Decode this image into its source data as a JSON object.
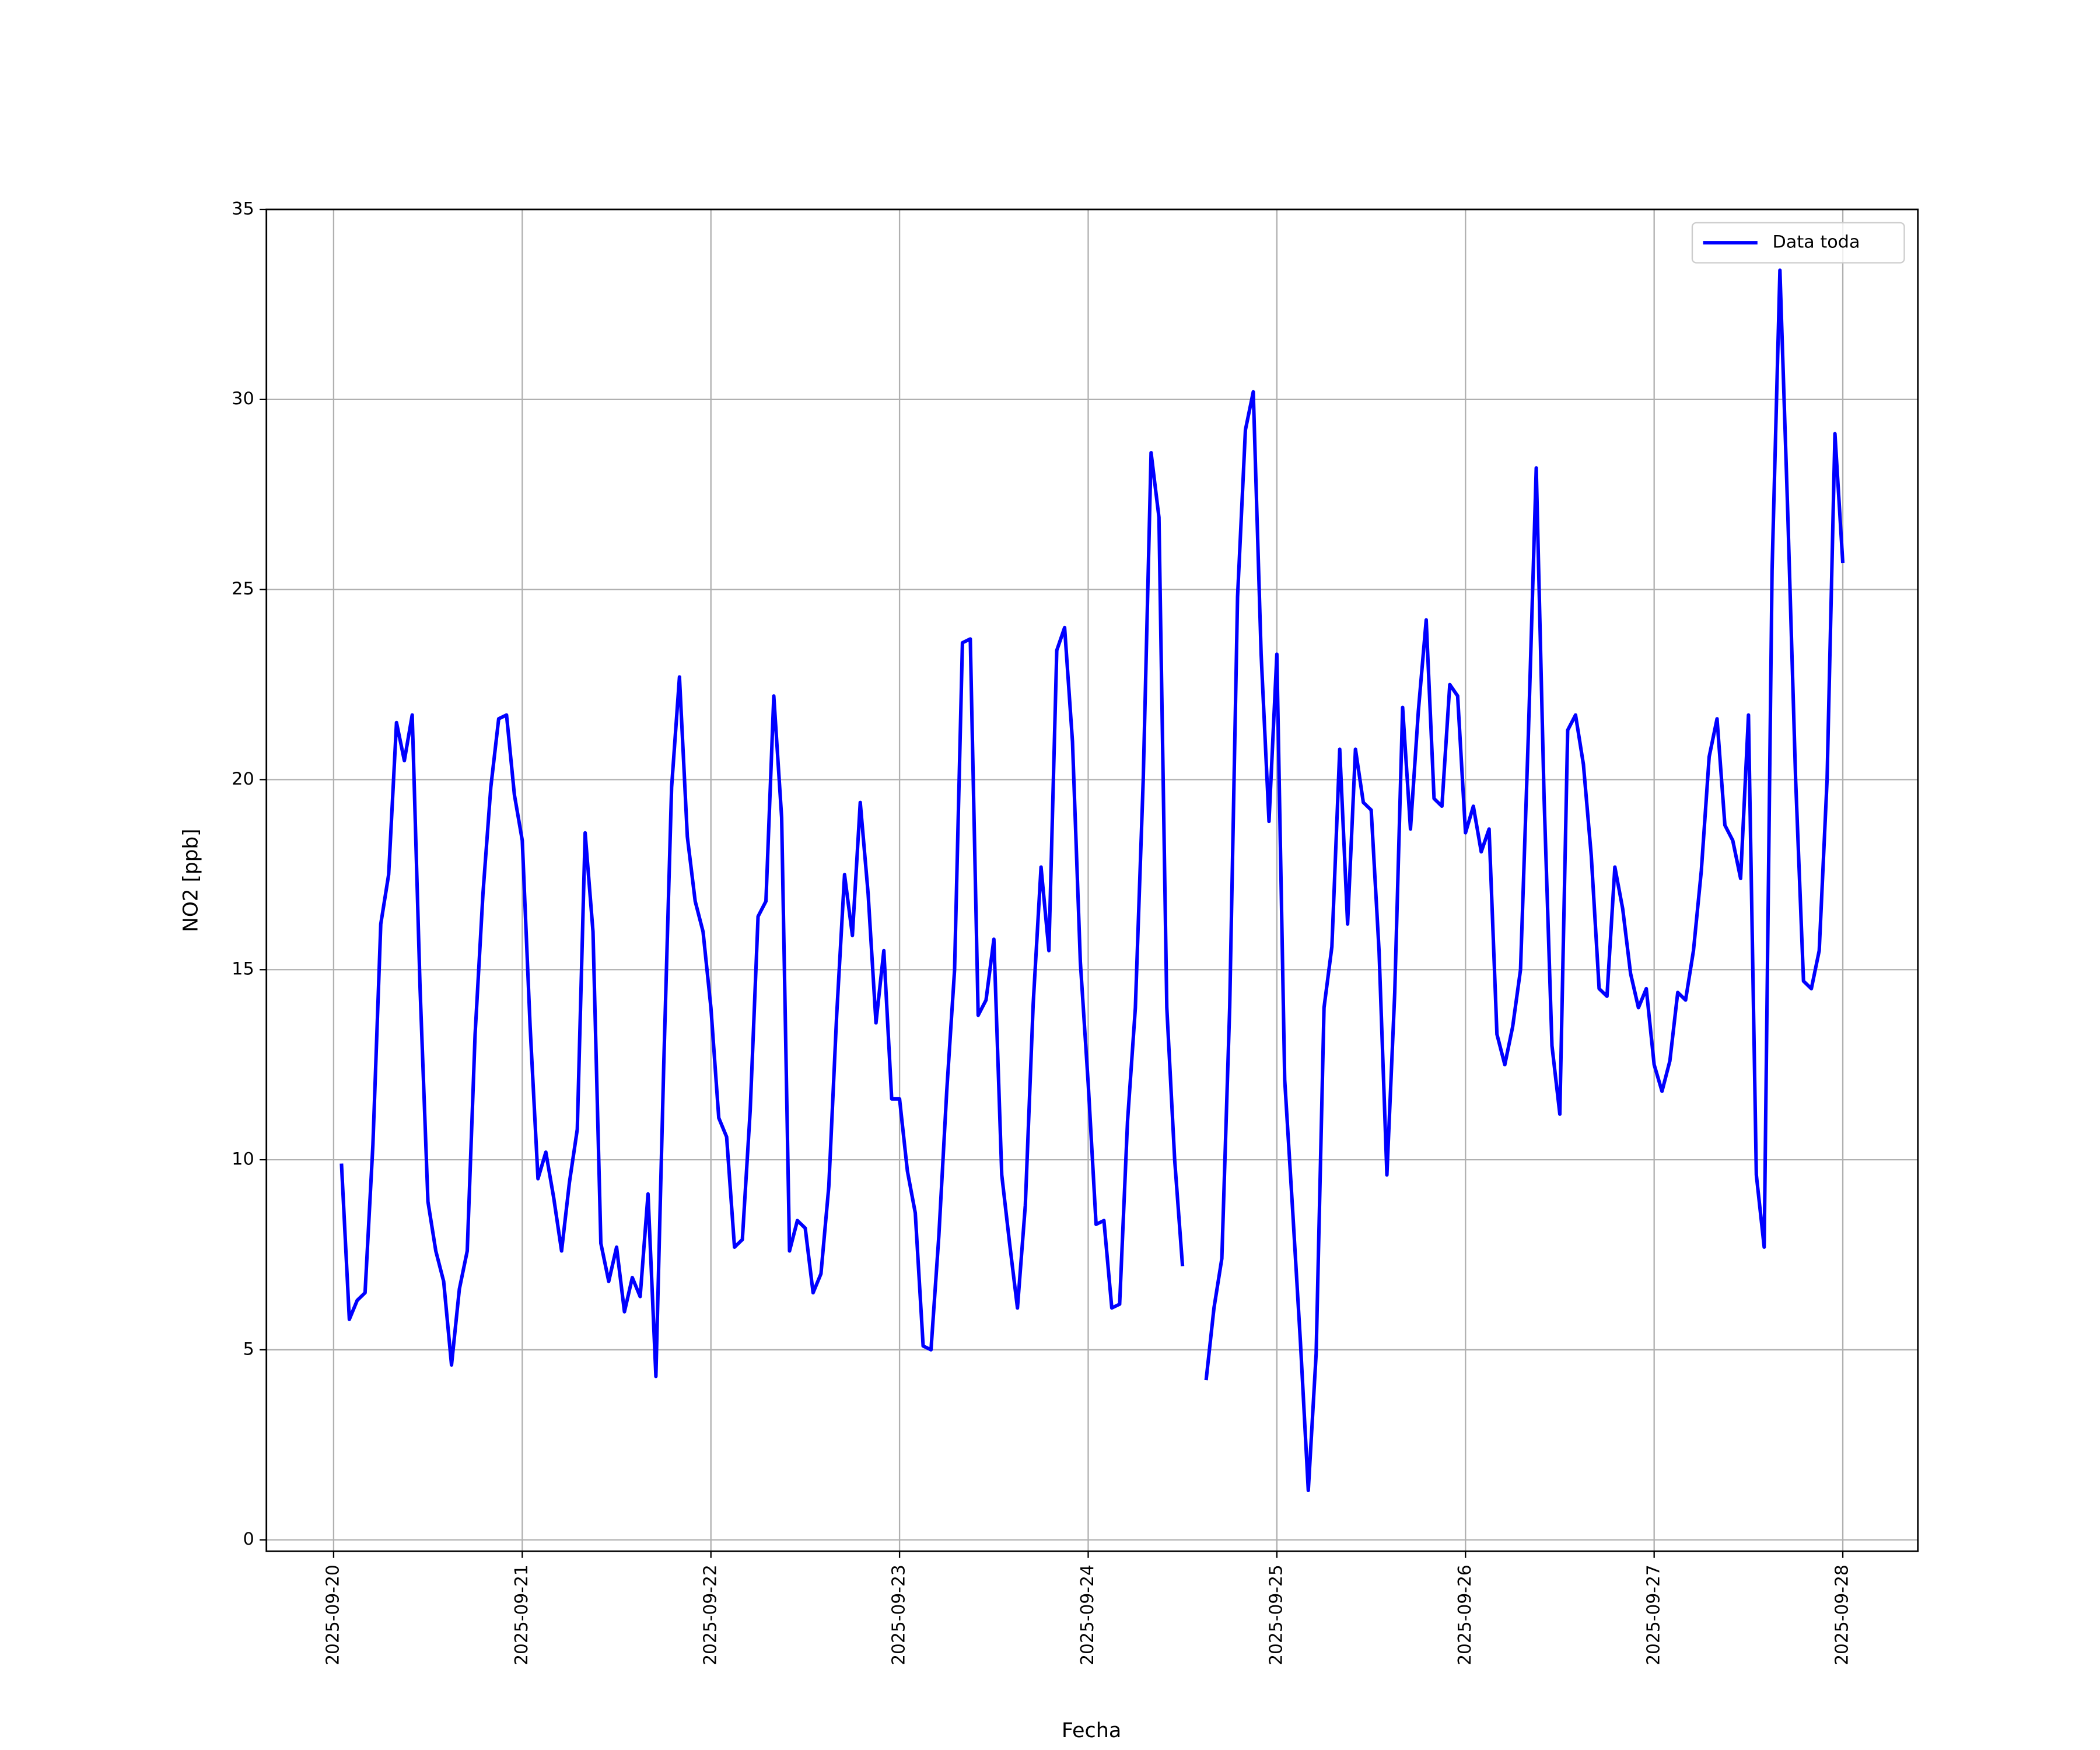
{
  "chart_data": {
    "type": "line",
    "x_label": "Fecha",
    "y_label": "NO2 [ppb]",
    "x": [
      1,
      2,
      3,
      4,
      5,
      6,
      7,
      8,
      9,
      10,
      11,
      12,
      13,
      14,
      15,
      16,
      17,
      18,
      19,
      20,
      21,
      22,
      23,
      24,
      25,
      26,
      27,
      28,
      29,
      30,
      31,
      32,
      33,
      34,
      35,
      36,
      37,
      38,
      39,
      40,
      41,
      42,
      43,
      44,
      45,
      46,
      47,
      48,
      49,
      50,
      51,
      52,
      53,
      54,
      55,
      56,
      57,
      58,
      59,
      60,
      61,
      62,
      63,
      64,
      65,
      66,
      67,
      68,
      69,
      70,
      71,
      72,
      73,
      74,
      75,
      76,
      77,
      78,
      79,
      80,
      81,
      82,
      83,
      84,
      85,
      86,
      87,
      88,
      89,
      90,
      91,
      92,
      93,
      94,
      95,
      96,
      97,
      98,
      99,
      100,
      101,
      102,
      103,
      104,
      105,
      106,
      107,
      108,
      109,
      110,
      111,
      112,
      113,
      114,
      115,
      116,
      117,
      118,
      119,
      120,
      121,
      122,
      123,
      124,
      125,
      126,
      127,
      128,
      129,
      130,
      131,
      132,
      133,
      134,
      135,
      136,
      137,
      138,
      139,
      140,
      141,
      142,
      143,
      144,
      145,
      146,
      147,
      148,
      149,
      150,
      151,
      152,
      153,
      154,
      155,
      156,
      157,
      158,
      159,
      160,
      161,
      162,
      163,
      164,
      165,
      166,
      167,
      168,
      169,
      170,
      171,
      172,
      173,
      174,
      175,
      176,
      177,
      178,
      179,
      180,
      181,
      182,
      183,
      184,
      185,
      186,
      187,
      188,
      189,
      190,
      191,
      192
    ],
    "series": [
      {
        "name": "Data toda",
        "color": "#0000ff",
        "values": [
          9.9,
          5.8,
          6.3,
          6.5,
          10.4,
          16.2,
          17.5,
          21.5,
          20.5,
          21.7,
          14.5,
          8.9,
          7.6,
          6.8,
          4.6,
          6.6,
          7.6,
          13.3,
          17,
          19.8,
          21.6,
          21.7,
          19.6,
          18.4,
          13.5,
          9.5,
          10.2,
          9,
          7.6,
          9.4,
          10.8,
          18.6,
          16,
          7.8,
          6.8,
          7.7,
          6,
          6.9,
          6.4,
          9.1,
          4.3,
          12.5,
          19.8,
          22.7,
          18.5,
          16.8,
          16,
          14,
          11.1,
          10.6,
          7.7,
          7.9,
          11.3,
          16.4,
          16.8,
          22.2,
          19,
          7.6,
          8.4,
          8.2,
          6.5,
          7,
          9.3,
          13.8,
          17.5,
          15.9,
          19.4,
          17,
          13.6,
          15.5,
          11.6,
          11.6,
          9.7,
          8.6,
          5.1,
          5,
          8,
          11.8,
          15,
          23.6,
          23.7,
          13.8,
          14.2,
          15.8,
          9.6,
          7.8,
          6.1,
          8.8,
          14.1,
          17.7,
          15.5,
          23.4,
          24,
          21,
          15.2,
          12,
          8.3,
          8.4,
          6.1,
          6.2,
          11,
          14,
          20,
          28.6,
          26.9,
          14,
          10,
          7.2,
          null,
          null,
          4.2,
          6.1,
          7.4,
          14,
          24.8,
          29.2,
          30.2,
          23.3,
          18.9,
          23.3,
          12.1,
          8.7,
          5.2,
          1.3,
          4.9,
          14,
          15.6,
          20.8,
          16.2,
          20.8,
          19.4,
          19.2,
          15.5,
          9.6,
          14.4,
          21.9,
          18.7,
          21.8,
          24.2,
          19.5,
          19.3,
          22.5,
          22.2,
          18.6,
          19.3,
          18.1,
          18.7,
          13.3,
          12.5,
          13.5,
          15,
          21.2,
          28.2,
          19.5,
          13,
          11.2,
          21.3,
          21.7,
          20.4,
          18,
          14.5,
          14.3,
          17.7,
          16.6,
          14.9,
          14,
          14.5,
          12.5,
          11.8,
          12.6,
          14.4,
          14.2,
          15.5,
          17.6,
          20.6,
          21.6,
          18.8,
          18.4,
          17.4,
          21.7,
          9.6,
          7.7,
          25.5,
          33.4,
          27,
          20,
          14.7,
          14.5,
          15.5,
          20,
          29.1,
          25.7
        ]
      }
    ],
    "xlim": [
      -8.55,
      201.55
    ],
    "xticks": [
      {
        "value": 0,
        "label": "2025-09-20"
      },
      {
        "value": 24,
        "label": "2025-09-21"
      },
      {
        "value": 48,
        "label": "2025-09-22"
      },
      {
        "value": 72,
        "label": "2025-09-23"
      },
      {
        "value": 96,
        "label": "2025-09-24"
      },
      {
        "value": 120,
        "label": "2025-09-25"
      },
      {
        "value": 144,
        "label": "2025-09-26"
      },
      {
        "value": 168,
        "label": "2025-09-27"
      },
      {
        "value": 192,
        "label": "2025-09-28"
      }
    ],
    "ylim": [
      -0.3,
      35
    ],
    "yticks": [
      0,
      5,
      10,
      15,
      20,
      25,
      30,
      35
    ],
    "grid": true,
    "legend": "upper right"
  }
}
